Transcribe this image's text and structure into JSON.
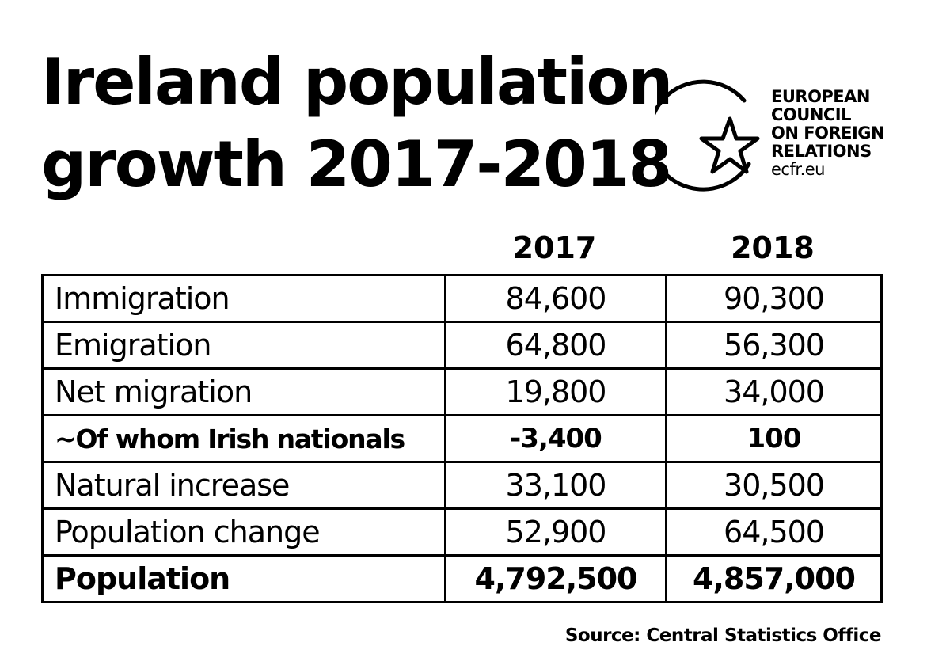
{
  "title": {
    "line1": "Ireland population",
    "line2": "growth 2017-2018"
  },
  "logo": {
    "line1": "EUROPEAN",
    "line2": "COUNCIL",
    "line3": "ON FOREIGN",
    "line4": "RELATIONS",
    "url": "ecfr.eu",
    "icon": "circle-star-icon"
  },
  "source": "Source: Central Statistics Office",
  "chart_data": {
    "type": "table",
    "columns": [
      "",
      "2017",
      "2018"
    ],
    "rows": [
      {
        "label": "Immigration",
        "values": [
          "84,600",
          "90,300"
        ],
        "bold": false
      },
      {
        "label": "Emigration",
        "values": [
          "64,800",
          "56,300"
        ],
        "bold": false
      },
      {
        "label": "Net migration",
        "values": [
          "19,800",
          "34,000"
        ],
        "bold": false
      },
      {
        "label": "~Of whom Irish nationals",
        "values": [
          "-3,400",
          "100"
        ],
        "bold": true
      },
      {
        "label": "Natural increase",
        "values": [
          "33,100",
          "30,500"
        ],
        "bold": false
      },
      {
        "label": "Population change",
        "values": [
          "52,900",
          "64,500"
        ],
        "bold": false
      },
      {
        "label": "Population",
        "values": [
          "4,792,500",
          "4,857,000"
        ],
        "bold": true
      }
    ]
  }
}
